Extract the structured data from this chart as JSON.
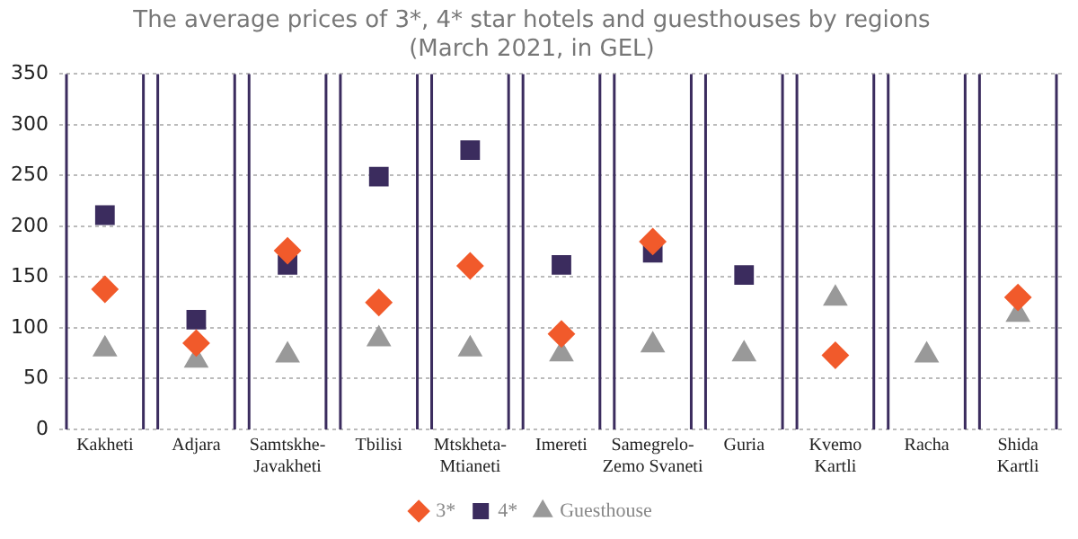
{
  "chart_data": {
    "type": "scatter",
    "title": [
      "The average prices of 3*, 4* star hotels and guesthouses by regions",
      "(March 2021, in GEL)"
    ],
    "categories": [
      "Kakheti",
      "Adjara",
      [
        "Samtskhe-",
        "Javakheti"
      ],
      "Tbilisi",
      [
        "Mtskheta-",
        "Mtianeti"
      ],
      "Imereti",
      [
        "Samegrelo-",
        "Zemo Svaneti"
      ],
      "Guria",
      [
        "Kvemo",
        "Kartli"
      ],
      "Racha",
      [
        "Shida",
        "Kartli"
      ]
    ],
    "series": [
      {
        "name": "3*",
        "color": "#f15a2b",
        "marker": "diamond",
        "values": [
          138,
          85,
          176,
          125,
          161,
          94,
          185,
          null,
          73,
          null,
          130
        ]
      },
      {
        "name": "4*",
        "color": "#3b2c5e",
        "marker": "square",
        "values": [
          211,
          108,
          162,
          249,
          275,
          162,
          174,
          152,
          null,
          null,
          null
        ]
      },
      {
        "name": "Guesthouse",
        "color": "#999999",
        "marker": "triangle",
        "values": [
          79,
          68,
          73,
          89,
          79,
          74,
          83,
          74,
          129,
          73,
          113
        ]
      }
    ],
    "ylim": [
      0,
      350
    ],
    "yticks": [
      0,
      50,
      100,
      150,
      200,
      250,
      300,
      350
    ],
    "grid": "y",
    "legend": "bottom"
  }
}
